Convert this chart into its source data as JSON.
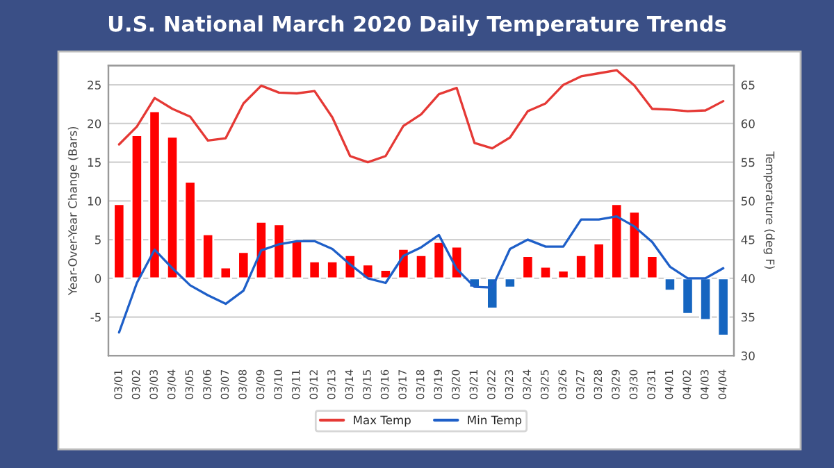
{
  "chart_data": {
    "type": "bar",
    "title": "U.S. National March 2020 Daily Temperature Trends",
    "ylabel": "Year-Over-Year Change (Bars)",
    "y2label": "Temperature (deg F)",
    "categories": [
      "03/01",
      "03/02",
      "03/03",
      "03/04",
      "03/05",
      "03/06",
      "03/07",
      "03/08",
      "03/09",
      "03/10",
      "03/11",
      "03/12",
      "03/13",
      "03/14",
      "03/15",
      "03/16",
      "03/17",
      "03/18",
      "03/19",
      "03/20",
      "03/21",
      "03/22",
      "03/23",
      "03/24",
      "03/25",
      "03/26",
      "03/27",
      "03/28",
      "03/29",
      "03/30",
      "03/31",
      "04/01",
      "04/02",
      "04/03",
      "04/04"
    ],
    "series": [
      {
        "colors": [
          "#ff0000",
          "#ff0000",
          "#ff0000",
          "#ff0000",
          "#ff0000",
          "#ff0000",
          "#ff0000",
          "#ff0000",
          "#ff0000",
          "#ff0000",
          "#ff0000",
          "#ff0000",
          "#ff0000",
          "#ff0000",
          "#ff0000",
          "#ff0000",
          "#ff0000",
          "#ff0000",
          "#ff0000",
          "#ff0000",
          "#1565c0",
          "#1565c0",
          "#1565c0",
          "#ff0000",
          "#ff0000",
          "#ff0000",
          "#ff0000",
          "#ff0000",
          "#ff0000",
          "#ff0000",
          "#ff0000",
          "#1565c0",
          "#1565c0",
          "#1565c0",
          "#1565c0"
        ],
        "values": [
          9.6,
          18.5,
          21.6,
          18.3,
          12.5,
          5.7,
          1.4,
          3.4,
          7.3,
          7.0,
          4.9,
          2.2,
          2.2,
          3.0,
          1.8,
          1.1,
          3.8,
          3.0,
          4.7,
          4.1,
          -1.2,
          -3.9,
          -1.2,
          2.9,
          1.5,
          1.0,
          3.0,
          4.5,
          9.6,
          8.6,
          2.9,
          -1.6,
          -4.6,
          -5.4,
          -7.4
        ]
      },
      {
        "type": "line",
        "axis": "y2",
        "name": "Max Temp",
        "color": "#e53935",
        "values": [
          57.3,
          59.6,
          63.3,
          61.9,
          60.9,
          57.8,
          58.1,
          62.6,
          64.9,
          64.0,
          63.9,
          64.2,
          60.8,
          55.8,
          55.0,
          55.8,
          59.7,
          61.2,
          63.8,
          64.6,
          57.5,
          56.8,
          58.2,
          61.6,
          62.6,
          65.0,
          66.1,
          66.5,
          66.9,
          64.9,
          61.9,
          61.8,
          61.6,
          61.7,
          62.9
        ]
      },
      {
        "type": "line",
        "axis": "y2",
        "name": "Min Temp",
        "color": "#1e5fc8",
        "values": [
          33.0,
          39.4,
          43.7,
          41.3,
          39.1,
          37.8,
          36.7,
          38.4,
          43.6,
          44.4,
          44.8,
          44.8,
          43.8,
          41.8,
          40.0,
          39.4,
          42.9,
          44.0,
          45.6,
          41.2,
          38.9,
          38.8,
          43.8,
          45.0,
          44.1,
          44.1,
          47.6,
          47.6,
          48.0,
          46.7,
          44.7,
          41.5,
          40.0,
          40.0,
          41.3
        ]
      }
    ],
    "ylim": [
      -10,
      27.5
    ],
    "yticks": [
      {
        "value": -10,
        "label": null
      },
      -5,
      0,
      5,
      10,
      15,
      20,
      25
    ],
    "y2lim": [
      30,
      67.5
    ],
    "y2ticks": [
      30,
      35,
      40,
      45,
      50,
      55,
      60,
      65
    ],
    "grid": "y",
    "legend": "bottom",
    "marker": "none",
    "line_style": "solid"
  }
}
